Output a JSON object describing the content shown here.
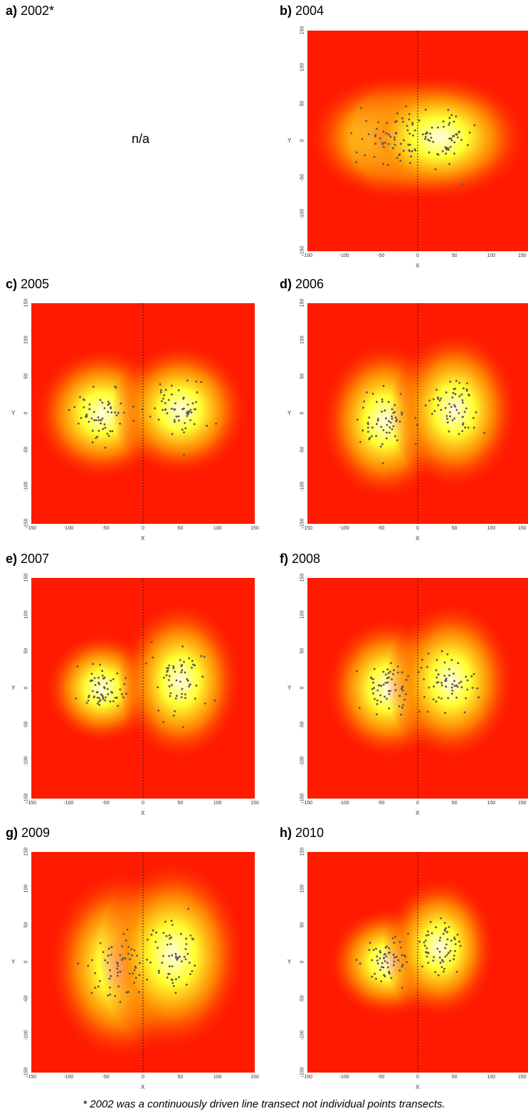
{
  "footnote": "* 2002 was a continuously driven line transect not individual points transects.",
  "colors": {
    "outer": "#ff1a00",
    "mid": "#ff8c00",
    "inner": "#ffff33",
    "core": "#fffce0",
    "points": "#555555",
    "midline": "#222222"
  },
  "chart_data": [
    {
      "type": "heatmap",
      "letter": "a)",
      "year": "2002*",
      "placeholder": "n/a",
      "xlabel": "",
      "ylabel": "",
      "xlim": [
        -150,
        150
      ],
      "ylim": [
        -150,
        150
      ],
      "hotspots": []
    },
    {
      "type": "heatmap",
      "letter": "b)",
      "year": "2004",
      "xlabel": "X",
      "ylabel": "Y",
      "xlim": [
        -150,
        150
      ],
      "ylim": [
        -150,
        150
      ],
      "xticks": [
        -150,
        -100,
        -50,
        0,
        50,
        100,
        150
      ],
      "yticks": [
        -150,
        -100,
        -50,
        0,
        50,
        100,
        150
      ],
      "hotspots": [
        {
          "x": -30,
          "y": 5,
          "sx": 55,
          "sy": 40
        },
        {
          "x": 30,
          "y": 5,
          "sx": 55,
          "sy": 40
        }
      ]
    },
    {
      "type": "heatmap",
      "letter": "c)",
      "year": "2005",
      "xlabel": "X",
      "ylabel": "Y",
      "xlim": [
        -150,
        150
      ],
      "ylim": [
        -150,
        150
      ],
      "xticks": [
        -150,
        -100,
        -50,
        0,
        50,
        100,
        150
      ],
      "yticks": [
        -150,
        -100,
        -50,
        0,
        50,
        100,
        150
      ],
      "hotspots": [
        {
          "x": -55,
          "y": 0,
          "sx": 42,
          "sy": 42
        },
        {
          "x": 50,
          "y": 5,
          "sx": 42,
          "sy": 42
        }
      ]
    },
    {
      "type": "heatmap",
      "letter": "d)",
      "year": "2006",
      "xlabel": "X",
      "ylabel": "Y",
      "xlim": [
        -150,
        150
      ],
      "ylim": [
        -150,
        150
      ],
      "xticks": [
        -150,
        -100,
        -50,
        0,
        50,
        100,
        150
      ],
      "yticks": [
        -150,
        -100,
        -50,
        0,
        50,
        100,
        150
      ],
      "hotspots": [
        {
          "x": -45,
          "y": -10,
          "sx": 40,
          "sy": 50
        },
        {
          "x": 50,
          "y": 5,
          "sx": 40,
          "sy": 50
        }
      ]
    },
    {
      "type": "heatmap",
      "letter": "e)",
      "year": "2007",
      "xlabel": "X",
      "ylabel": "Y",
      "xlim": [
        -150,
        150
      ],
      "ylim": [
        -150,
        150
      ],
      "xticks": [
        -150,
        -100,
        -50,
        0,
        50,
        100,
        150
      ],
      "yticks": [
        -150,
        -100,
        -50,
        0,
        50,
        100,
        150
      ],
      "hotspots": [
        {
          "x": -55,
          "y": 0,
          "sx": 35,
          "sy": 35
        },
        {
          "x": 50,
          "y": 10,
          "sx": 38,
          "sy": 50
        }
      ]
    },
    {
      "type": "heatmap",
      "letter": "f)",
      "year": "2008",
      "xlabel": "X",
      "ylabel": "Y",
      "xlim": [
        -150,
        150
      ],
      "ylim": [
        -150,
        150
      ],
      "xticks": [
        -150,
        -100,
        -50,
        0,
        50,
        100,
        150
      ],
      "yticks": [
        -150,
        -100,
        -50,
        0,
        50,
        100,
        150
      ],
      "hotspots": [
        {
          "x": -40,
          "y": 0,
          "sx": 40,
          "sy": 45
        },
        {
          "x": 45,
          "y": 10,
          "sx": 40,
          "sy": 50
        }
      ]
    },
    {
      "type": "heatmap",
      "letter": "g)",
      "year": "2009",
      "xlabel": "X",
      "ylabel": "Y",
      "xlim": [
        -150,
        150
      ],
      "ylim": [
        -150,
        150
      ],
      "xticks": [
        -150,
        -100,
        -50,
        0,
        50,
        100,
        150
      ],
      "yticks": [
        -150,
        -100,
        -50,
        0,
        50,
        100,
        150
      ],
      "hotspots": [
        {
          "x": -30,
          "y": -5,
          "sx": 45,
          "sy": 60
        },
        {
          "x": 40,
          "y": 10,
          "sx": 45,
          "sy": 60
        }
      ]
    },
    {
      "type": "heatmap",
      "letter": "h)",
      "year": "2010",
      "xlabel": "X",
      "ylabel": "Y",
      "xlim": [
        -150,
        150
      ],
      "ylim": [
        -150,
        150
      ],
      "xticks": [
        -150,
        -100,
        -50,
        0,
        50,
        100,
        150
      ],
      "yticks": [
        -150,
        -100,
        -50,
        0,
        50,
        100,
        150
      ],
      "hotspots": [
        {
          "x": -40,
          "y": 0,
          "sx": 38,
          "sy": 35
        },
        {
          "x": 30,
          "y": 20,
          "sx": 35,
          "sy": 45
        }
      ]
    }
  ]
}
